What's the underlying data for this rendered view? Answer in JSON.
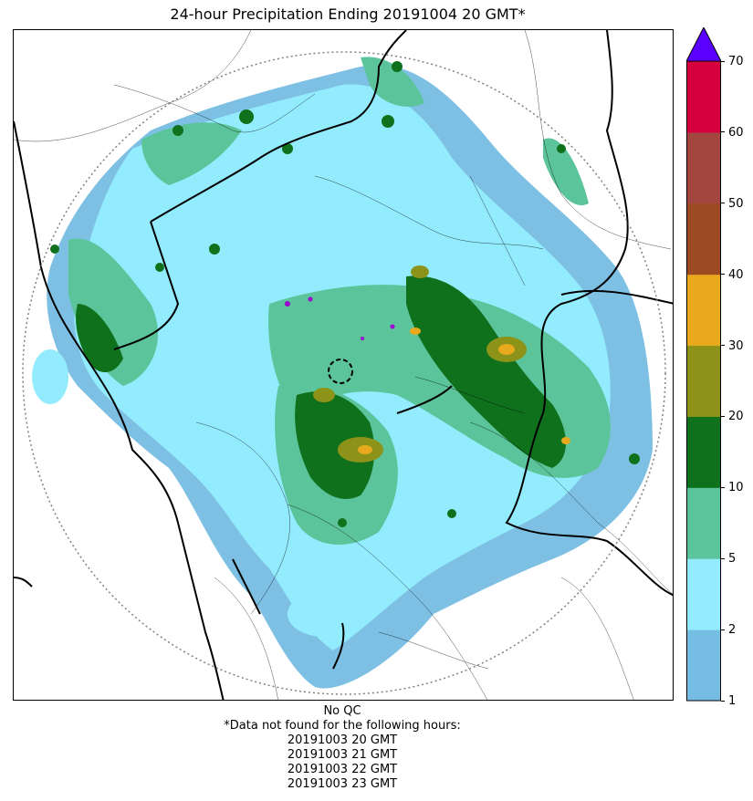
{
  "title": "24-hour Precipitation Ending 20191004 20 GMT*",
  "colorbar": {
    "ticks": [
      "1",
      "2",
      "5",
      "10",
      "20",
      "30",
      "40",
      "50",
      "60",
      "70"
    ],
    "colors": [
      "#76bde3",
      "#93ecfd",
      "#5bc49a",
      "#10711c",
      "#8d9318",
      "#e8a91c",
      "#9b4a22",
      "#a3463f",
      "#d6003f"
    ],
    "overflow_color": "#5a00ff"
  },
  "footer": {
    "qc_note": "No QC",
    "missing_note": "*Data not found for the following hours:",
    "missing_hours": [
      "20191003 20 GMT",
      "20191003 21 GMT",
      "20191003 22 GMT",
      "20191003 23 GMT"
    ]
  }
}
